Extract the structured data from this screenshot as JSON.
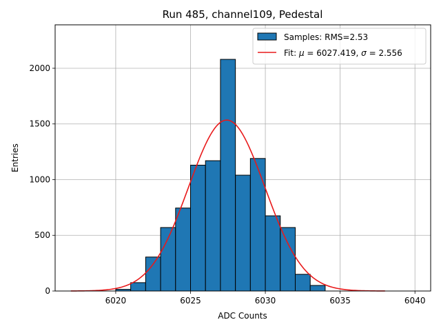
{
  "chart_data": {
    "type": "bar",
    "title": "Run 485, channel109, Pedestal",
    "xlabel": "ADC Counts",
    "ylabel": "Entries",
    "xlim": [
      6015.95,
      6041.05
    ],
    "ylim": [
      0,
      2390
    ],
    "xticks": [
      6020,
      6025,
      6030,
      6035,
      6040
    ],
    "yticks": [
      0,
      500,
      1000,
      1500,
      2000
    ],
    "grid": true,
    "legend_position": "top-right",
    "histogram": {
      "name": "Samples: RMS=2.53",
      "color": "#1f77b4",
      "edgecolor": "#000000",
      "bin_edges": [
        6020,
        6021,
        6022,
        6023,
        6024,
        6025,
        6026,
        6027,
        6028,
        6029,
        6030,
        6031,
        6032,
        6033,
        6034
      ],
      "values": [
        15,
        75,
        305,
        570,
        745,
        1130,
        1170,
        2080,
        1040,
        1190,
        675,
        570,
        150,
        50
      ]
    },
    "fit": {
      "name_prefix": "Fit: ",
      "mu_symbol": "μ",
      "mu_text": " = 6027.419, ",
      "sigma_symbol": "σ",
      "sigma_text": " = 2.556",
      "color": "#e8191a",
      "mu": 6027.419,
      "sigma": 2.556,
      "peak": 1535,
      "x_range": [
        6017,
        6038
      ]
    }
  }
}
